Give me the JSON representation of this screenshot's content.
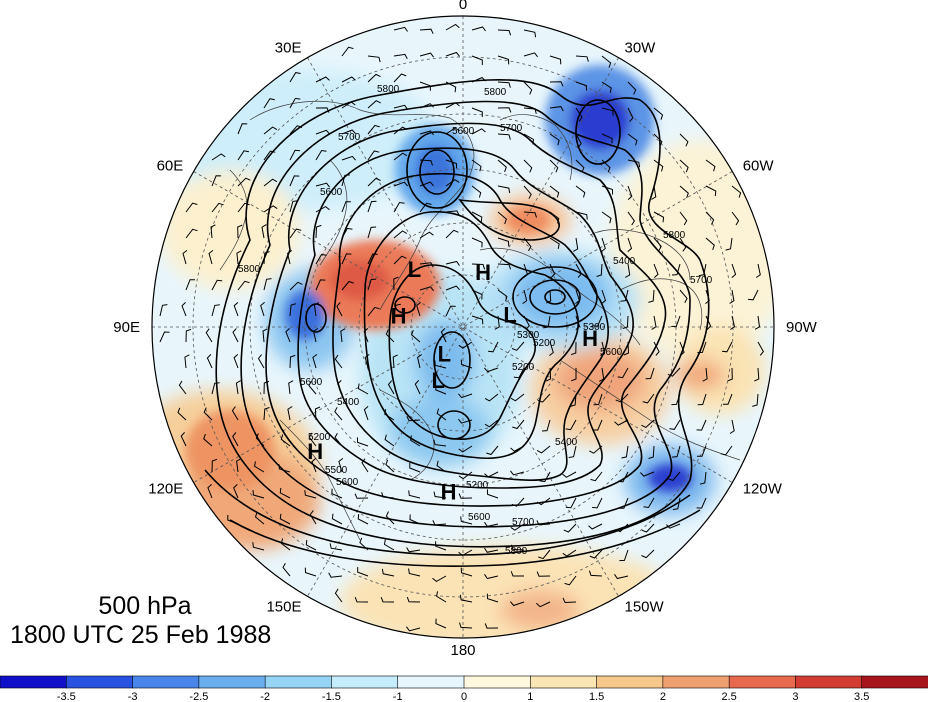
{
  "map": {
    "projection": "north-polar-stereographic",
    "lon_labels": [
      {
        "text": "0",
        "lon": 0
      },
      {
        "text": "30W",
        "lon": -30
      },
      {
        "text": "60W",
        "lon": -60
      },
      {
        "text": "90W",
        "lon": -90
      },
      {
        "text": "120W",
        "lon": -120
      },
      {
        "text": "150W",
        "lon": -150
      },
      {
        "text": "180",
        "lon": 180
      },
      {
        "text": "150E",
        "lon": 150
      },
      {
        "text": "120E",
        "lon": 120
      },
      {
        "text": "90E",
        "lon": 90
      },
      {
        "text": "60E",
        "lon": 60
      },
      {
        "text": "30E",
        "lon": 30
      }
    ],
    "pressure_systems": [
      {
        "type": "L",
        "label": "L",
        "lon": 40,
        "lat": 67
      },
      {
        "type": "L",
        "label": "L",
        "lon": -75,
        "lat": 75
      },
      {
        "type": "L",
        "label": "L",
        "lon": 145,
        "lat": 80
      },
      {
        "type": "L",
        "label": "L",
        "lon": 155,
        "lat": 72
      },
      {
        "type": "H",
        "label": "H",
        "lon": -20,
        "lat": 72
      },
      {
        "type": "H",
        "label": "H",
        "lon": 80,
        "lat": 70
      },
      {
        "type": "H",
        "label": "H",
        "lon": -95,
        "lat": 52
      },
      {
        "type": "H",
        "label": "H",
        "lon": 130,
        "lat": 35
      },
      {
        "type": "H",
        "label": "H",
        "lon": 175,
        "lat": 42
      }
    ],
    "contour_labels": [
      "5800",
      "5700",
      "5600",
      "5800",
      "5700",
      "5600",
      "5800",
      "5600",
      "5400",
      "5200",
      "5800",
      "5700",
      "5600",
      "5300",
      "5200",
      "5400",
      "5400",
      "5600",
      "5700",
      "5800",
      "5600",
      "5500",
      "5200",
      "5300",
      "5200"
    ]
  },
  "caption": {
    "level": "500 hPa",
    "time": "1800 UTC 25 Feb 1988"
  },
  "colorbar": {
    "colors": [
      "#1010c8",
      "#2a52e0",
      "#4a86ea",
      "#6aaef0",
      "#96d4f6",
      "#c4ecfa",
      "#e6f6fc",
      "#fdf8de",
      "#fae6b4",
      "#f6c88c",
      "#f0a070",
      "#e86a4e",
      "#d23c32",
      "#a8141c"
    ],
    "ticks": [
      "-3.5",
      "-3",
      "-2.5",
      "-2",
      "-1.5",
      "-1",
      "0",
      "1",
      "1.5",
      "2",
      "2.5",
      "3",
      "3.5"
    ]
  },
  "colors": {
    "positive_anomaly": "#ee8a62",
    "negative_anomaly": "#3d7fe6",
    "background": "#ffffff"
  }
}
